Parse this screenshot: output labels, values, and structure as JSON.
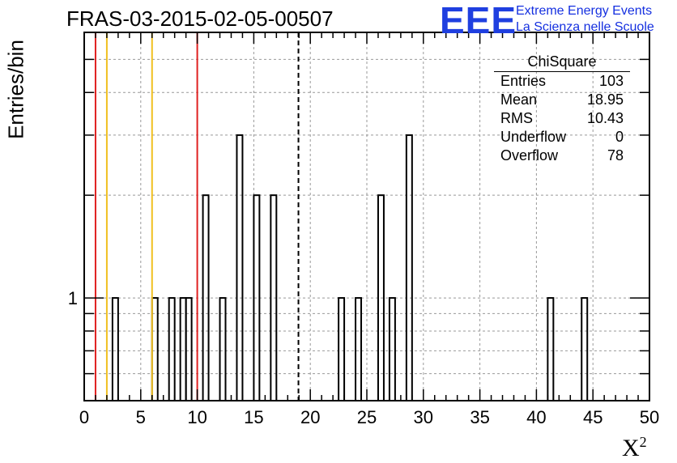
{
  "header": {
    "title": "FRAS-03-2015-02-05-00507",
    "logo_text": "EEE",
    "logo_line1": "Extreme Energy Events",
    "logo_line2": "La Scienza nelle Scuole"
  },
  "stats": {
    "name": "ChiSquare",
    "rows": [
      {
        "label": "Entries",
        "value": "103"
      },
      {
        "label": "Mean",
        "value": "18.95"
      },
      {
        "label": "RMS",
        "value": "10.43"
      },
      {
        "label": "Underflow",
        "value": "0"
      },
      {
        "label": "Overflow",
        "value": "78"
      }
    ]
  },
  "chart_data": {
    "type": "bar",
    "title": "FRAS-03-2015-02-05-00507",
    "xlabel": "X",
    "xlabel_sup": "2",
    "ylabel": "Entries/bin",
    "xlim": [
      0,
      50
    ],
    "ylim_log": [
      0.5,
      6
    ],
    "y_scale": "log",
    "grid": true,
    "bin_width": 0.5,
    "bins": [
      {
        "x0": 2.5,
        "count": 1
      },
      {
        "x0": 6.0,
        "count": 1
      },
      {
        "x0": 7.5,
        "count": 1
      },
      {
        "x0": 8.5,
        "count": 1
      },
      {
        "x0": 9.0,
        "count": 1
      },
      {
        "x0": 10.5,
        "count": 2
      },
      {
        "x0": 12.0,
        "count": 1
      },
      {
        "x0": 13.5,
        "count": 3
      },
      {
        "x0": 15.0,
        "count": 2
      },
      {
        "x0": 16.5,
        "count": 2
      },
      {
        "x0": 22.5,
        "count": 1
      },
      {
        "x0": 24.0,
        "count": 1
      },
      {
        "x0": 26.0,
        "count": 2
      },
      {
        "x0": 27.0,
        "count": 1
      },
      {
        "x0": 28.5,
        "count": 3
      },
      {
        "x0": 41.0,
        "count": 1
      },
      {
        "x0": 44.0,
        "count": 1
      }
    ],
    "xticks": [
      "0",
      "5",
      "10",
      "15",
      "20",
      "25",
      "30",
      "35",
      "40",
      "45",
      "50"
    ],
    "yticks": [
      {
        "value": 1,
        "label": "1"
      }
    ],
    "vlines": [
      {
        "x": 1,
        "color": "#e02020",
        "style": "solid"
      },
      {
        "x": 2,
        "color": "#f0c020",
        "style": "solid"
      },
      {
        "x": 6,
        "color": "#f0c020",
        "style": "solid"
      },
      {
        "x": 10,
        "color": "#e02020",
        "style": "solid"
      },
      {
        "x": 18.95,
        "color": "#000000",
        "style": "dashed"
      }
    ]
  }
}
